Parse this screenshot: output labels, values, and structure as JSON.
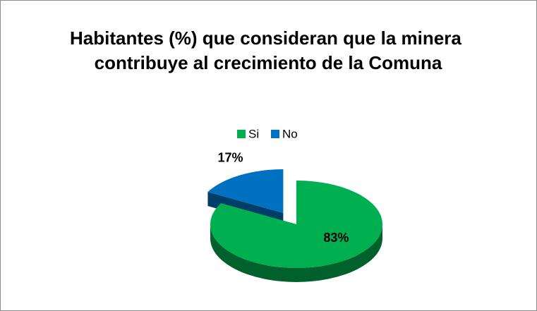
{
  "chart_data": {
    "type": "pie",
    "title": "Habitantes (%) que consideran que la minera contribuye al crecimiento de la Comuna",
    "categories": [
      "Si",
      "No"
    ],
    "values": [
      83,
      17
    ],
    "value_labels": [
      "83%",
      "17%"
    ],
    "colors": [
      "#00b050",
      "#0070c0"
    ],
    "legend": "top"
  }
}
